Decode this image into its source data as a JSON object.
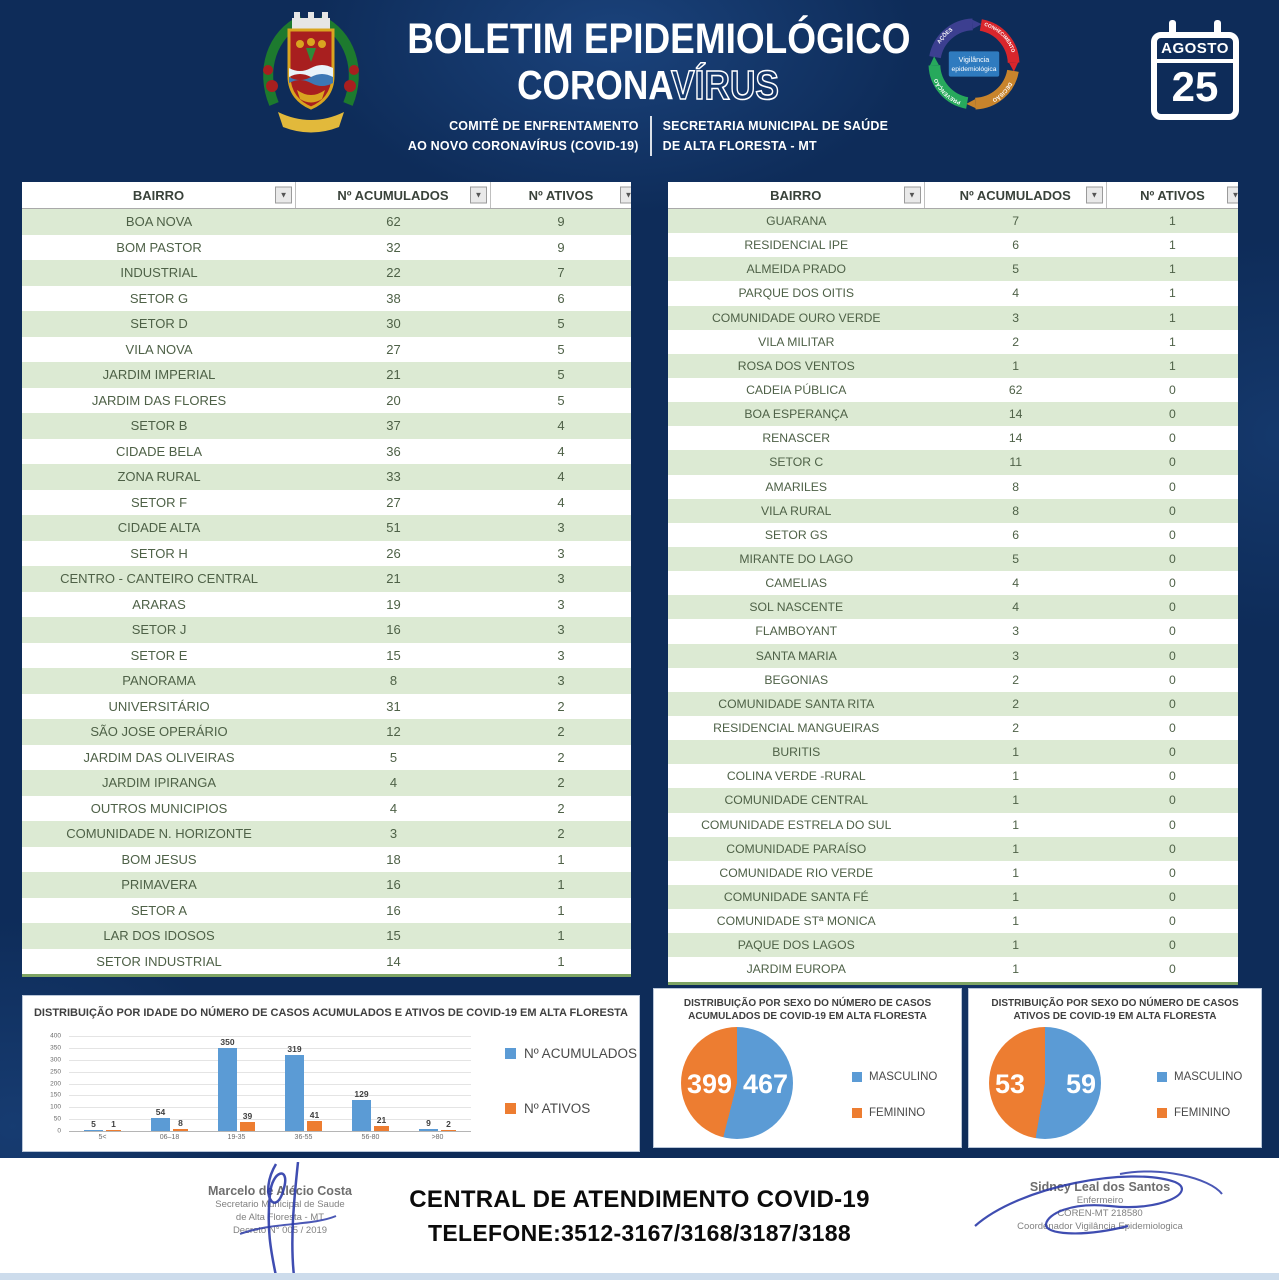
{
  "header": {
    "title_line1": "BOLETIM EPIDEMIOLÓGICO",
    "title_line2_solid": "CORONA",
    "title_line2_outline": "VÍRUS",
    "subtitle_left_line1": "COMITÊ DE ENFRENTAMENTO",
    "subtitle_left_line2": "AO NOVO CORONAVÍRUS (COVID-19)",
    "subtitle_right_line1": "SECRETARIA MUNICIPAL DE SAÚDE",
    "subtitle_right_line2": "DE ALTA FLORESTA - MT",
    "cycle_logo": {
      "center_line1": "Vigilância",
      "center_line2": "epidemiológica",
      "arrows": [
        "AÇÕES",
        "CONHECIMENTO",
        "DECISÃO",
        "PREVENÇÃO"
      ],
      "colors": [
        "#3c3f90",
        "#d9262c",
        "#c8842c",
        "#27a95c"
      ],
      "center_box_color": "#2f7bbf"
    },
    "calendar": {
      "month": "AGOSTO",
      "day": "25"
    }
  },
  "tables": {
    "headers": {
      "bairro": "BAIRRO",
      "acumulados": "Nº ACUMULADOS",
      "ativos": "Nº ATIVOS"
    },
    "left_rows": [
      {
        "bairro": "BOA NOVA",
        "acumulados": 62,
        "ativos": 9
      },
      {
        "bairro": "BOM PASTOR",
        "acumulados": 32,
        "ativos": 9
      },
      {
        "bairro": "INDUSTRIAL",
        "acumulados": 22,
        "ativos": 7
      },
      {
        "bairro": "SETOR G",
        "acumulados": 38,
        "ativos": 6
      },
      {
        "bairro": "SETOR D",
        "acumulados": 30,
        "ativos": 5
      },
      {
        "bairro": "VILA NOVA",
        "acumulados": 27,
        "ativos": 5
      },
      {
        "bairro": "JARDIM IMPERIAL",
        "acumulados": 21,
        "ativos": 5
      },
      {
        "bairro": "JARDIM DAS FLORES",
        "acumulados": 20,
        "ativos": 5
      },
      {
        "bairro": "SETOR B",
        "acumulados": 37,
        "ativos": 4
      },
      {
        "bairro": "CIDADE BELA",
        "acumulados": 36,
        "ativos": 4
      },
      {
        "bairro": "ZONA RURAL",
        "acumulados": 33,
        "ativos": 4
      },
      {
        "bairro": "SETOR F",
        "acumulados": 27,
        "ativos": 4
      },
      {
        "bairro": "CIDADE ALTA",
        "acumulados": 51,
        "ativos": 3
      },
      {
        "bairro": "SETOR H",
        "acumulados": 26,
        "ativos": 3
      },
      {
        "bairro": "CENTRO - CANTEIRO CENTRAL",
        "acumulados": 21,
        "ativos": 3
      },
      {
        "bairro": "ARARAS",
        "acumulados": 19,
        "ativos": 3
      },
      {
        "bairro": "SETOR J",
        "acumulados": 16,
        "ativos": 3
      },
      {
        "bairro": "SETOR E",
        "acumulados": 15,
        "ativos": 3
      },
      {
        "bairro": "PANORAMA",
        "acumulados": 8,
        "ativos": 3
      },
      {
        "bairro": "UNIVERSITÁRIO",
        "acumulados": 31,
        "ativos": 2
      },
      {
        "bairro": "SÃO JOSE OPERÁRIO",
        "acumulados": 12,
        "ativos": 2
      },
      {
        "bairro": "JARDIM DAS OLIVEIRAS",
        "acumulados": 5,
        "ativos": 2
      },
      {
        "bairro": "JARDIM IPIRANGA",
        "acumulados": 4,
        "ativos": 2
      },
      {
        "bairro": "OUTROS MUNICIPIOS",
        "acumulados": 4,
        "ativos": 2
      },
      {
        "bairro": "COMUNIDADE N. HORIZONTE",
        "acumulados": 3,
        "ativos": 2
      },
      {
        "bairro": "BOM JESUS",
        "acumulados": 18,
        "ativos": 1
      },
      {
        "bairro": "PRIMAVERA",
        "acumulados": 16,
        "ativos": 1
      },
      {
        "bairro": "SETOR A",
        "acumulados": 16,
        "ativos": 1
      },
      {
        "bairro": "LAR DOS IDOSOS",
        "acumulados": 15,
        "ativos": 1
      },
      {
        "bairro": "SETOR INDUSTRIAL",
        "acumulados": 14,
        "ativos": 1
      }
    ],
    "right_rows": [
      {
        "bairro": "GUARANA",
        "acumulados": 7,
        "ativos": 1
      },
      {
        "bairro": "RESIDENCIAL IPE",
        "acumulados": 6,
        "ativos": 1
      },
      {
        "bairro": "ALMEIDA PRADO",
        "acumulados": 5,
        "ativos": 1
      },
      {
        "bairro": "PARQUE DOS OITIS",
        "acumulados": 4,
        "ativos": 1
      },
      {
        "bairro": "COMUNIDADE OURO VERDE",
        "acumulados": 3,
        "ativos": 1
      },
      {
        "bairro": "VILA MILITAR",
        "acumulados": 2,
        "ativos": 1
      },
      {
        "bairro": "ROSA DOS VENTOS",
        "acumulados": 1,
        "ativos": 1
      },
      {
        "bairro": "CADEIA PÚBLICA",
        "acumulados": 62,
        "ativos": 0
      },
      {
        "bairro": "BOA ESPERANÇA",
        "acumulados": 14,
        "ativos": 0
      },
      {
        "bairro": "RENASCER",
        "acumulados": 14,
        "ativos": 0
      },
      {
        "bairro": "SETOR C",
        "acumulados": 11,
        "ativos": 0
      },
      {
        "bairro": "AMARILES",
        "acumulados": 8,
        "ativos": 0
      },
      {
        "bairro": "VILA RURAL",
        "acumulados": 8,
        "ativos": 0
      },
      {
        "bairro": "SETOR GS",
        "acumulados": 6,
        "ativos": 0
      },
      {
        "bairro": "MIRANTE DO LAGO",
        "acumulados": 5,
        "ativos": 0
      },
      {
        "bairro": "CAMELIAS",
        "acumulados": 4,
        "ativos": 0
      },
      {
        "bairro": "SOL NASCENTE",
        "acumulados": 4,
        "ativos": 0
      },
      {
        "bairro": "FLAMBOYANT",
        "acumulados": 3,
        "ativos": 0
      },
      {
        "bairro": "SANTA MARIA",
        "acumulados": 3,
        "ativos": 0
      },
      {
        "bairro": "BEGONIAS",
        "acumulados": 2,
        "ativos": 0
      },
      {
        "bairro": "COMUNIDADE SANTA RITA",
        "acumulados": 2,
        "ativos": 0
      },
      {
        "bairro": "RESIDENCIAL MANGUEIRAS",
        "acumulados": 2,
        "ativos": 0
      },
      {
        "bairro": "BURITIS",
        "acumulados": 1,
        "ativos": 0
      },
      {
        "bairro": "COLINA VERDE -RURAL",
        "acumulados": 1,
        "ativos": 0
      },
      {
        "bairro": "COMUNIDADE CENTRAL",
        "acumulados": 1,
        "ativos": 0
      },
      {
        "bairro": "COMUNIDADE ESTRELA DO SUL",
        "acumulados": 1,
        "ativos": 0
      },
      {
        "bairro": "COMUNIDADE PARAÍSO",
        "acumulados": 1,
        "ativos": 0
      },
      {
        "bairro": "COMUNIDADE RIO VERDE",
        "acumulados": 1,
        "ativos": 0
      },
      {
        "bairro": "COMUNIDADE SANTA FÉ",
        "acumulados": 1,
        "ativos": 0
      },
      {
        "bairro": "COMUNIDADE STª MONICA",
        "acumulados": 1,
        "ativos": 0
      },
      {
        "bairro": "PAQUE DOS LAGOS",
        "acumulados": 1,
        "ativos": 0
      },
      {
        "bairro": "JARDIM EUROPA",
        "acumulados": 1,
        "ativos": 0
      }
    ]
  },
  "chart_data": [
    {
      "type": "bar",
      "title": "DISTRIBUIÇÃO POR IDADE DO NÚMERO DE CASOS ACUMULADOS E ATIVOS DE COVID-19 EM ALTA FLORESTA",
      "categories": [
        "5<",
        "06–18",
        "19-35",
        "36-55",
        "56-80",
        ">80"
      ],
      "series": [
        {
          "name": "Nº ACUMULADOS",
          "color": "#5b9bd5",
          "values": [
            5,
            54,
            350,
            319,
            129,
            9
          ]
        },
        {
          "name": "Nº ATIVOS",
          "color": "#ed7d31",
          "values": [
            1,
            8,
            39,
            41,
            21,
            2
          ]
        }
      ],
      "xlabel": "",
      "ylabel": "",
      "ylim": [
        0,
        400
      ],
      "ytick_step": 50,
      "grid": true,
      "legend_position": "right"
    },
    {
      "type": "pie",
      "title": "DISTRIBUIÇÃO POR SEXO DO NÚMERO DE CASOS ACUMULADOS DE COVID-19 EM ALTA FLORESTA",
      "labels": [
        "MASCULINO",
        "FEMININO"
      ],
      "values": [
        467,
        399
      ],
      "colors": [
        "#5b9bd5",
        "#ed7d31"
      ],
      "legend_position": "right"
    },
    {
      "type": "pie",
      "title": "DISTRIBUIÇÃO POR SEXO DO NÚMERO DE CASOS ATIVOS DE COVID-19 EM ALTA FLORESTA",
      "labels": [
        "MASCULINO",
        "FEMININO"
      ],
      "values": [
        59,
        53
      ],
      "colors": [
        "#5b9bd5",
        "#ed7d31"
      ],
      "legend_position": "right"
    }
  ],
  "footer": {
    "left_signature": {
      "name": "Marcelo de Alécio Costa",
      "line2": "Secretario Municipal de Saude",
      "line3": "de Alta Floresta - MT",
      "line4": "Decreto N° 005 / 2019"
    },
    "center": {
      "line1": "CENTRAL DE ATENDIMENTO COVID-19",
      "line2": "TELEFONE:3512-3167/3168/3187/3188"
    },
    "right_signature": {
      "name": "Sidney Leal dos Santos",
      "line2": "Enfermeiro",
      "line3": "COREN-MT 218580",
      "line4": "Coordenador Vigilância Epidemiologica"
    }
  },
  "colors": {
    "background_navy": "#0e2c59",
    "accent_blue": "#5b9bd5",
    "accent_orange": "#ed7d31",
    "table_stripe_green": "#dcead3",
    "table_border_green": "#7ea464"
  }
}
